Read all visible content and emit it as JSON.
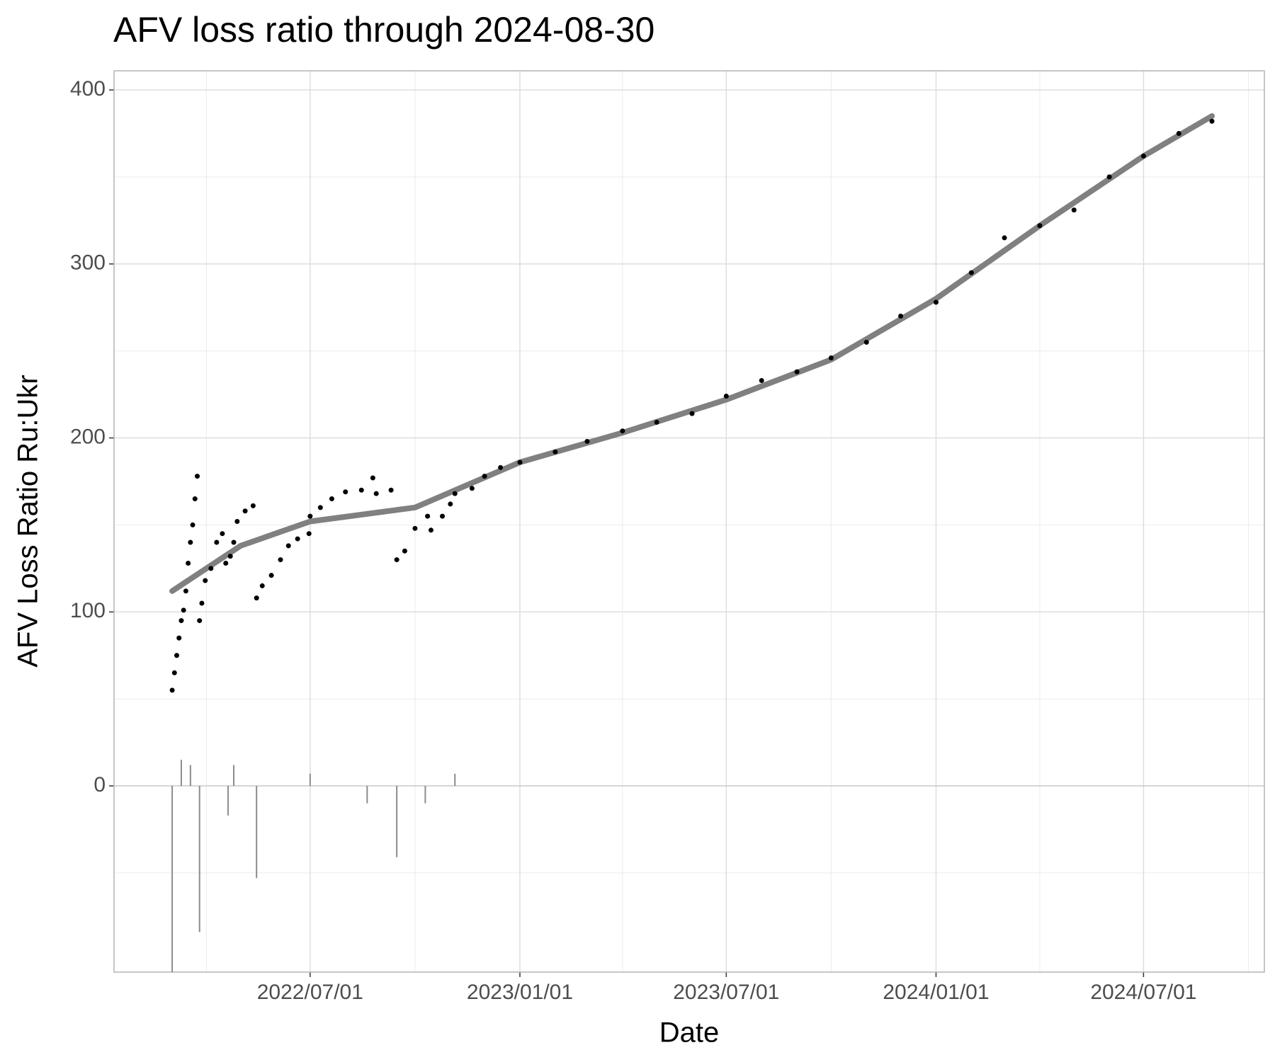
{
  "chart_data": {
    "type": "scatter",
    "title": "AFV loss ratio through 2024-08-30",
    "x_label": "Date",
    "y_label": "AFV Loss Ratio Ru:Ukr",
    "color": "#000000",
    "x": [
      "2022-03-02",
      "2022-03-04",
      "2022-03-06",
      "2022-03-08",
      "2022-03-10",
      "2022-03-12",
      "2022-03-14",
      "2022-03-16",
      "2022-03-18",
      "2022-03-20",
      "2022-03-22",
      "2022-03-24",
      "2022-03-26",
      "2022-03-28",
      "2022-03-31",
      "2022-04-05",
      "2022-04-10",
      "2022-04-15",
      "2022-04-18",
      "2022-04-22",
      "2022-04-25",
      "2022-04-28",
      "2022-05-05",
      "2022-05-12",
      "2022-05-15",
      "2022-05-20",
      "2022-05-28",
      "2022-06-05",
      "2022-06-12",
      "2022-06-20",
      "2022-06-30",
      "2022-07-01",
      "2022-07-10",
      "2022-07-20",
      "2022-08-01",
      "2022-08-15",
      "2022-08-25",
      "2022-08-28",
      "2022-09-10",
      "2022-09-15",
      "2022-09-22",
      "2022-10-01",
      "2022-10-12",
      "2022-10-15",
      "2022-10-25",
      "2022-11-01",
      "2022-11-05",
      "2022-11-20",
      "2022-12-01",
      "2022-12-15",
      "2023-01-01",
      "2023-02-01",
      "2023-03-01",
      "2023-04-01",
      "2023-05-01",
      "2023-06-01",
      "2023-07-01",
      "2023-08-01",
      "2023-09-01",
      "2023-10-01",
      "2023-11-01",
      "2023-12-01",
      "2024-01-01",
      "2024-02-01",
      "2024-03-01",
      "2024-04-01",
      "2024-05-01",
      "2024-06-01",
      "2024-07-01",
      "2024-08-01",
      "2024-08-30"
    ],
    "values": [
      55,
      65,
      75,
      85,
      95,
      101,
      112,
      128,
      140,
      150,
      165,
      178,
      95,
      105,
      118,
      125,
      140,
      145,
      128,
      132,
      140,
      152,
      158,
      161,
      108,
      115,
      121,
      130,
      138,
      142,
      145,
      155,
      160,
      165,
      169,
      170,
      177,
      168,
      170,
      130,
      135,
      148,
      155,
      147,
      155,
      162,
      168,
      171,
      178,
      183,
      186,
      192,
      198,
      204,
      209,
      214,
      224,
      233,
      238,
      246,
      255,
      270,
      278,
      295,
      315,
      322,
      331,
      350,
      362,
      375,
      382
    ],
    "trend": {
      "color": "#808080",
      "x": [
        "2022-03-02",
        "2022-05-01",
        "2022-07-01",
        "2022-10-01",
        "2023-01-01",
        "2023-04-01",
        "2023-07-01",
        "2023-10-01",
        "2024-01-01",
        "2024-04-01",
        "2024-07-01",
        "2024-08-30"
      ],
      "values": [
        112,
        138,
        152,
        160,
        186,
        203,
        222,
        245,
        280,
        322,
        362,
        385
      ]
    },
    "bars": {
      "color": "#8c8c8c",
      "x": [
        "2022-03-02",
        "2022-03-10",
        "2022-03-18",
        "2022-03-26",
        "2022-04-20",
        "2022-04-25",
        "2022-05-15",
        "2022-07-01",
        "2022-08-20",
        "2022-09-15",
        "2022-10-10",
        "2022-11-05"
      ],
      "values": [
        -107,
        15,
        12,
        -84,
        -17,
        12,
        -53,
        7,
        -10,
        -41,
        -10,
        7
      ]
    },
    "xlim": [
      "2022-01-10",
      "2024-10-15"
    ],
    "ylim": [
      -107,
      411
    ],
    "xticks": [
      {
        "value": "2022-07-01",
        "label": "2022/07/01"
      },
      {
        "value": "2023-01-01",
        "label": "2023/01/01"
      },
      {
        "value": "2023-07-01",
        "label": "2023/07/01"
      },
      {
        "value": "2024-01-01",
        "label": "2024/01/01"
      },
      {
        "value": "2024-07-01",
        "label": "2024/07/01"
      }
    ],
    "yticks": [
      0,
      100,
      200,
      300,
      400
    ],
    "x_minor_grid": [
      "2022-04-01",
      "2022-10-01",
      "2023-04-01",
      "2023-10-01",
      "2024-04-01",
      "2024-10-01"
    ],
    "y_minor_grid": [
      -50,
      50,
      150,
      250,
      350
    ],
    "grid": true
  }
}
